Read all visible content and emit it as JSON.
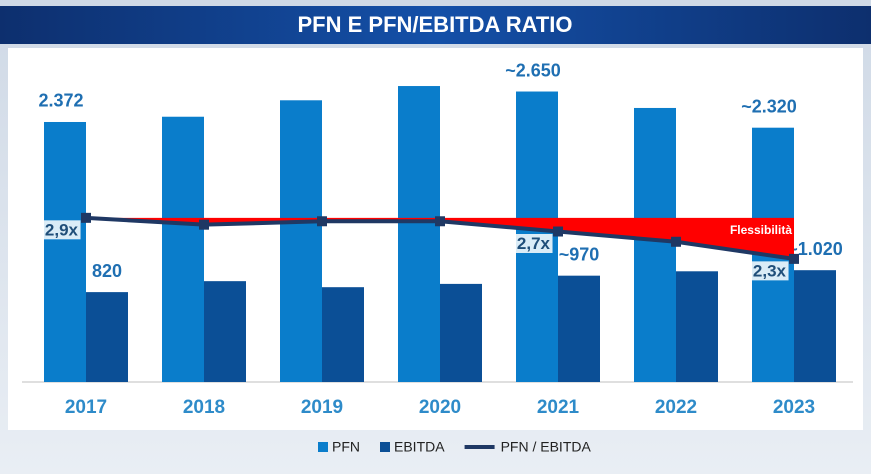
{
  "chart_data": {
    "type": "bar",
    "title": "PFN E PFN/EBITDA RATIO",
    "categories": [
      "2017",
      "2018",
      "2019",
      "2020",
      "2021",
      "2022",
      "2023"
    ],
    "series": [
      {
        "name": "PFN",
        "color": "#0a7dcb",
        "values": [
          2372,
          2420,
          2570,
          2700,
          2650,
          2500,
          2320
        ],
        "value_labels": [
          "2.372",
          null,
          null,
          null,
          "~2.650",
          null,
          "~2.320"
        ]
      },
      {
        "name": "EBITDA",
        "color": "#0b4f96",
        "values": [
          820,
          920,
          865,
          895,
          970,
          1010,
          1020
        ],
        "value_labels": [
          "820",
          null,
          null,
          null,
          "~970",
          null,
          "~1.020"
        ]
      },
      {
        "name": "PFN / EBITDA",
        "type": "line",
        "axis": "y2",
        "color": "#1f3864",
        "values": [
          2.9,
          2.8,
          2.85,
          2.85,
          2.7,
          2.55,
          2.3
        ],
        "value_labels": [
          "2,9x",
          null,
          null,
          null,
          "2,7x",
          null,
          "2,3x"
        ]
      }
    ],
    "ylim": [
      0,
      3120
    ],
    "y2lim": [
      0.5,
      5.5
    ],
    "annotation": {
      "text": "Flessibilità",
      "level": 2.9,
      "color": "#ff0000"
    }
  }
}
